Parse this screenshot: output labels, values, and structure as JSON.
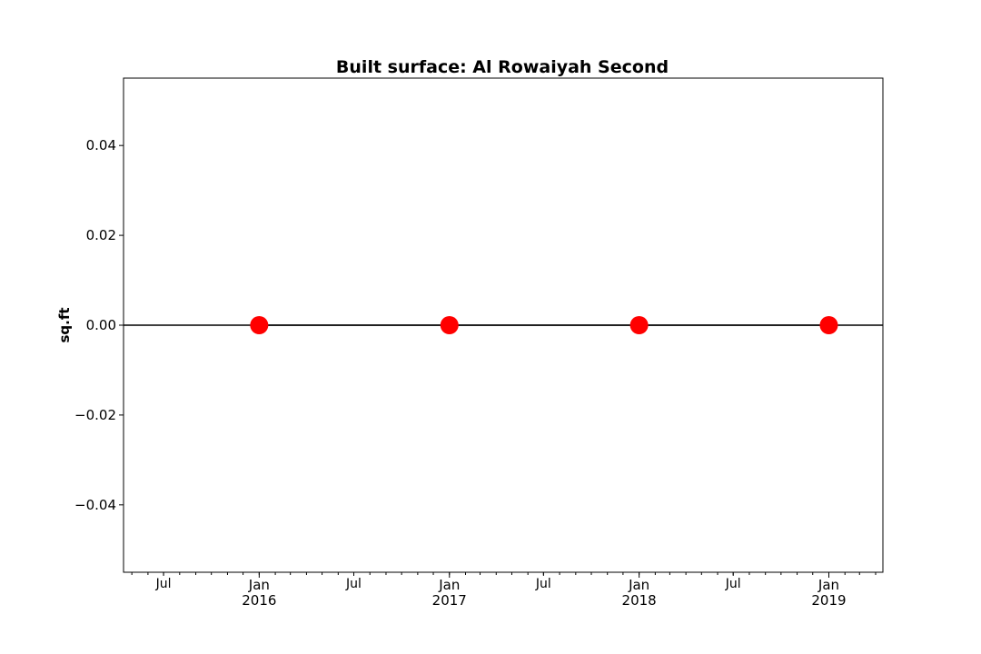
{
  "chart_data": {
    "type": "line",
    "title": "Built surface: Al Rowaiyah Second",
    "xlabel": "",
    "ylabel": "sq.ft",
    "xlim": [
      "2015-04-15",
      "2019-04-15"
    ],
    "ylim": [
      -0.055,
      0.055
    ],
    "y_ticks": [
      -0.04,
      -0.02,
      0.0,
      0.02,
      0.04
    ],
    "y_tick_labels": [
      "−0.04",
      "−0.02",
      "0.00",
      "0.02",
      "0.04"
    ],
    "x_major_ticks": [
      {
        "date": "2016-01-01",
        "label": [
          "Jan",
          "2016"
        ]
      },
      {
        "date": "2017-01-01",
        "label": [
          "Jan",
          "2017"
        ]
      },
      {
        "date": "2018-01-01",
        "label": [
          "Jan",
          "2018"
        ]
      },
      {
        "date": "2019-01-01",
        "label": [
          "Jan",
          "2019"
        ]
      }
    ],
    "x_mid_ticks": [
      {
        "date": "2015-07-01",
        "label": "Jul"
      },
      {
        "date": "2016-07-01",
        "label": "Jul"
      },
      {
        "date": "2017-07-01",
        "label": "Jul"
      },
      {
        "date": "2018-07-01",
        "label": "Jul"
      }
    ],
    "series": [
      {
        "x": [
          "2016-01-01",
          "2017-01-01",
          "2018-01-01",
          "2019-01-01"
        ],
        "y": [
          0,
          0,
          0,
          0
        ],
        "marker_color": "#ff0000",
        "line_color": "#000000"
      }
    ],
    "grid": false,
    "legend": "none"
  }
}
